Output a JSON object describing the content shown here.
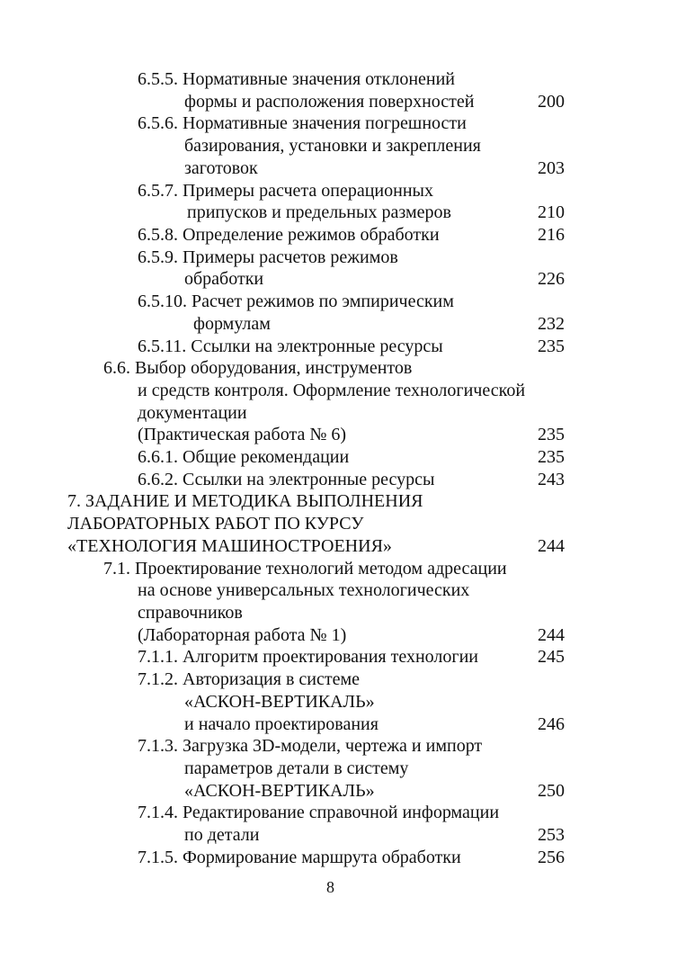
{
  "entries": [
    {
      "lines": [
        "6.5.5. Нормативные значения отклонений",
        "формы и расположения поверхностей"
      ],
      "page": "200"
    },
    {
      "lines": [
        "6.5.6. Нормативные значения погрешности",
        "базирования, установки и закрепления",
        "заготовок"
      ],
      "page": "203"
    },
    {
      "lines": [
        "6.5.7. Примеры расчета операционных",
        "припусков и предельных размеров"
      ],
      "page": "210"
    },
    {
      "lines": [
        "6.5.8. Определение режимов обработки"
      ],
      "page": "216"
    },
    {
      "lines": [
        "6.5.9. Примеры расчетов режимов",
        "обработки"
      ],
      "page": "226"
    },
    {
      "lines": [
        "6.5.10. Расчет режимов по эмпирическим",
        "формулам"
      ],
      "page": "232"
    },
    {
      "lines": [
        "6.5.11. Ссылки на электронные ресурсы"
      ],
      "page": "235"
    },
    {
      "lines": [
        "6.6. Выбор оборудования, инструментов",
        "и средств контроля. Оформление технологической",
        "документации",
        "(Практическая работа № 6)"
      ],
      "page": "235"
    },
    {
      "lines": [
        "6.6.1. Общие рекомендации"
      ],
      "page": "235"
    },
    {
      "lines": [
        "6.6.2. Ссылки на электронные ресурсы"
      ],
      "page": "243"
    },
    {
      "lines": [
        "7. ЗАДАНИЕ И МЕТОДИКА ВЫПОЛНЕНИЯ",
        "ЛАБОРАТОРНЫХ РАБОТ ПО КУРСУ",
        "«ТЕХНОЛОГИЯ МАШИНОСТРОЕНИЯ»"
      ],
      "page": "244"
    },
    {
      "lines": [
        "7.1. Проектирование технологий методом адресации",
        "на основе универсальных технологических",
        "справочников",
        "(Лабораторная работа № 1)"
      ],
      "page": "244"
    },
    {
      "lines": [
        "7.1.1. Алгоритм проектирования технологии"
      ],
      "page": "245"
    },
    {
      "lines": [
        "7.1.2. Авторизация в системе",
        "«АСКОН-ВЕРТИКАЛЬ»",
        "и начало проектирования"
      ],
      "page": "246"
    },
    {
      "lines": [
        "7.1.3. Загрузка 3D-модели, чертежа и импорт",
        "параметров детали в систему",
        "«АСКОН-ВЕРТИКАЛЬ»"
      ],
      "page": "250"
    },
    {
      "lines": [
        "7.1.4. Редактирование справочной информации",
        "по детали"
      ],
      "page": "253"
    },
    {
      "lines": [
        "7.1.5. Формирование маршрута обработки"
      ],
      "page": "256"
    }
  ],
  "page_number": "8"
}
